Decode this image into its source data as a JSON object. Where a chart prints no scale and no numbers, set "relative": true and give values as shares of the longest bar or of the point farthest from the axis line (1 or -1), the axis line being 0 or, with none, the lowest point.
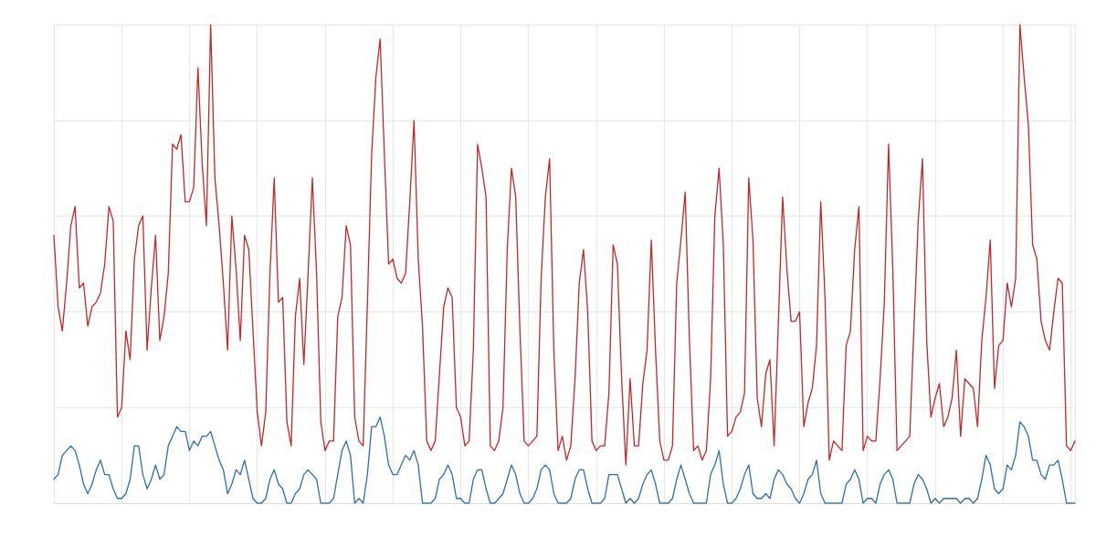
{
  "chart_data": {
    "type": "line",
    "relative": true,
    "grid": true,
    "marker": "none",
    "line_style": "solid",
    "categories": [
      null,
      null,
      null,
      null,
      null,
      null,
      null,
      null,
      null,
      null,
      null,
      null,
      null,
      null,
      null,
      null,
      null,
      null,
      null,
      null,
      null,
      null,
      null,
      null,
      null,
      null,
      null,
      null,
      null,
      null,
      null,
      null,
      null,
      null,
      null,
      null,
      null,
      null,
      null,
      null,
      null,
      null,
      null,
      null,
      null,
      null,
      null,
      null,
      null,
      null,
      null,
      null,
      null,
      null,
      null,
      null,
      null,
      null,
      null,
      null,
      null,
      null,
      null,
      null,
      null,
      null,
      null,
      null,
      null,
      null,
      null,
      null,
      null,
      null,
      null,
      null,
      null,
      null,
      null,
      null,
      null,
      null,
      null,
      null,
      null,
      null,
      null,
      null,
      null,
      null,
      null,
      null,
      null,
      null,
      null,
      null,
      null,
      null,
      null,
      null,
      null,
      null,
      null,
      null,
      null,
      null,
      null,
      null,
      null,
      null,
      null,
      null,
      null,
      null,
      null,
      null,
      null,
      null,
      null,
      null,
      null,
      null,
      null,
      null,
      null,
      null,
      null,
      null,
      null,
      null,
      null,
      null,
      null,
      null,
      null,
      null,
      null,
      null,
      null,
      null,
      null,
      null,
      null,
      null,
      null,
      null,
      null,
      null,
      null,
      null,
      null,
      null,
      null,
      null,
      null,
      null,
      null,
      null,
      null,
      null,
      null,
      null,
      null,
      null,
      null,
      null,
      null,
      null,
      null,
      null,
      null,
      null,
      null,
      null,
      null,
      null,
      null,
      null,
      null,
      null,
      null,
      null,
      null,
      null,
      null,
      null,
      null,
      null,
      null,
      null,
      null,
      null,
      null,
      null,
      null,
      null,
      null,
      null,
      null,
      null,
      null,
      null,
      null,
      null,
      null,
      null,
      null,
      null,
      null,
      null,
      null,
      null,
      null,
      null,
      null,
      null,
      null,
      null,
      null,
      null,
      null,
      null,
      null,
      null,
      null,
      null,
      null,
      null,
      null,
      null,
      null,
      null,
      null,
      null,
      null,
      null,
      null,
      null,
      null,
      null,
      null,
      null
    ],
    "series": [
      {
        "color": "#c0282d",
        "values": [
          0.56,
          0.41,
          0.36,
          0.46,
          0.58,
          0.62,
          0.45,
          0.46,
          0.37,
          0.41,
          0.42,
          0.44,
          0.5,
          0.62,
          0.59,
          0.18,
          0.2,
          0.36,
          0.3,
          0.51,
          0.58,
          0.6,
          0.32,
          0.45,
          0.56,
          0.34,
          0.39,
          0.48,
          0.75,
          0.74,
          0.77,
          0.63,
          0.63,
          0.66,
          0.91,
          0.71,
          0.58,
          1.0,
          0.68,
          0.58,
          0.46,
          0.32,
          0.6,
          0.49,
          0.34,
          0.56,
          0.53,
          0.36,
          0.19,
          0.12,
          0.19,
          0.48,
          0.68,
          0.42,
          0.43,
          0.17,
          0.12,
          0.39,
          0.47,
          0.29,
          0.48,
          0.68,
          0.48,
          0.17,
          0.11,
          0.13,
          0.13,
          0.39,
          0.43,
          0.58,
          0.54,
          0.18,
          0.13,
          0.12,
          0.42,
          0.73,
          0.89,
          0.97,
          0.73,
          0.5,
          0.51,
          0.47,
          0.46,
          0.48,
          0.63,
          0.8,
          0.51,
          0.37,
          0.13,
          0.11,
          0.13,
          0.27,
          0.41,
          0.45,
          0.43,
          0.2,
          0.18,
          0.12,
          0.13,
          0.32,
          0.75,
          0.7,
          0.64,
          0.12,
          0.11,
          0.13,
          0.2,
          0.53,
          0.7,
          0.64,
          0.36,
          0.13,
          0.12,
          0.13,
          0.14,
          0.47,
          0.64,
          0.72,
          0.32,
          0.11,
          0.14,
          0.09,
          0.12,
          0.26,
          0.46,
          0.53,
          0.4,
          0.13,
          0.11,
          0.12,
          0.12,
          0.23,
          0.54,
          0.5,
          0.26,
          0.08,
          0.26,
          0.12,
          0.12,
          0.25,
          0.32,
          0.55,
          0.32,
          0.13,
          0.09,
          0.09,
          0.12,
          0.46,
          0.55,
          0.65,
          0.34,
          0.11,
          0.12,
          0.09,
          0.11,
          0.26,
          0.6,
          0.7,
          0.54,
          0.14,
          0.15,
          0.18,
          0.19,
          0.23,
          0.68,
          0.55,
          0.22,
          0.16,
          0.27,
          0.3,
          0.12,
          0.38,
          0.64,
          0.49,
          0.38,
          0.38,
          0.4,
          0.16,
          0.21,
          0.24,
          0.33,
          0.63,
          0.43,
          0.09,
          0.13,
          0.12,
          0.11,
          0.33,
          0.36,
          0.53,
          0.62,
          0.11,
          0.14,
          0.13,
          0.13,
          0.26,
          0.42,
          0.75,
          0.49,
          0.11,
          0.12,
          0.13,
          0.14,
          0.37,
          0.59,
          0.72,
          0.34,
          0.18,
          0.22,
          0.25,
          0.16,
          0.18,
          0.22,
          0.32,
          0.14,
          0.26,
          0.25,
          0.24,
          0.16,
          0.34,
          0.43,
          0.55,
          0.24,
          0.33,
          0.34,
          0.46,
          0.41,
          0.47,
          1.0,
          0.89,
          0.79,
          0.54,
          0.51,
          0.38,
          0.34,
          0.32,
          0.4,
          0.47,
          0.46,
          0.12,
          0.11,
          0.13
        ]
      },
      {
        "color": "#2f6ea6",
        "values": [
          0.05,
          0.06,
          0.1,
          0.11,
          0.12,
          0.11,
          0.08,
          0.04,
          0.02,
          0.04,
          0.07,
          0.09,
          0.06,
          0.06,
          0.03,
          0.01,
          0.01,
          0.02,
          0.05,
          0.12,
          0.12,
          0.06,
          0.03,
          0.05,
          0.08,
          0.05,
          0.06,
          0.12,
          0.14,
          0.16,
          0.15,
          0.15,
          0.11,
          0.13,
          0.12,
          0.14,
          0.14,
          0.15,
          0.12,
          0.09,
          0.07,
          0.02,
          0.04,
          0.07,
          0.06,
          0.09,
          0.05,
          0.01,
          0,
          0,
          0.01,
          0.05,
          0.07,
          0.04,
          0.03,
          0,
          0,
          0.02,
          0.03,
          0.06,
          0.07,
          0.06,
          0.05,
          0,
          0,
          0,
          0.01,
          0.06,
          0.11,
          0.13,
          0.1,
          0,
          0.01,
          0,
          0.06,
          0.16,
          0.16,
          0.18,
          0.14,
          0.08,
          0.06,
          0.06,
          0.08,
          0.1,
          0.09,
          0.11,
          0.08,
          0,
          0,
          0,
          0.01,
          0.05,
          0.06,
          0.08,
          0.06,
          0.01,
          0.01,
          0,
          0,
          0.05,
          0.07,
          0.07,
          0.03,
          0,
          0,
          0.01,
          0.02,
          0.05,
          0.08,
          0.06,
          0.02,
          0,
          0,
          0.01,
          0.03,
          0.07,
          0.08,
          0.07,
          0.02,
          0,
          0,
          0,
          0.01,
          0.05,
          0.07,
          0.07,
          0.03,
          0,
          0,
          0,
          0.01,
          0.06,
          0.06,
          0.06,
          0.03,
          0,
          0.01,
          0,
          0.01,
          0.04,
          0.06,
          0.07,
          0.04,
          0,
          0,
          0,
          0.01,
          0.05,
          0.08,
          0.05,
          0.02,
          0,
          0,
          0,
          0,
          0.06,
          0.08,
          0.11,
          0.04,
          0,
          0,
          0.01,
          0.03,
          0.06,
          0.08,
          0.02,
          0.01,
          0.01,
          0.02,
          0.01,
          0.05,
          0.07,
          0.06,
          0.04,
          0.03,
          0.01,
          0,
          0.02,
          0.05,
          0.06,
          0.09,
          0.02,
          0,
          0,
          0,
          0,
          0,
          0.04,
          0.05,
          0.07,
          0.05,
          0,
          0.01,
          0.01,
          0,
          0.04,
          0.06,
          0.07,
          0.05,
          0,
          0,
          0,
          0,
          0.04,
          0.06,
          0.05,
          0.03,
          0,
          0.01,
          0,
          0.01,
          0.01,
          0.01,
          0.01,
          0,
          0.01,
          0.01,
          0,
          0.01,
          0.05,
          0.1,
          0.08,
          0.03,
          0.02,
          0.03,
          0.08,
          0.07,
          0.1,
          0.17,
          0.16,
          0.14,
          0.09,
          0.09,
          0.06,
          0.05,
          0.08,
          0.08,
          0.09,
          0.05,
          0,
          0,
          0
        ]
      }
    ]
  }
}
